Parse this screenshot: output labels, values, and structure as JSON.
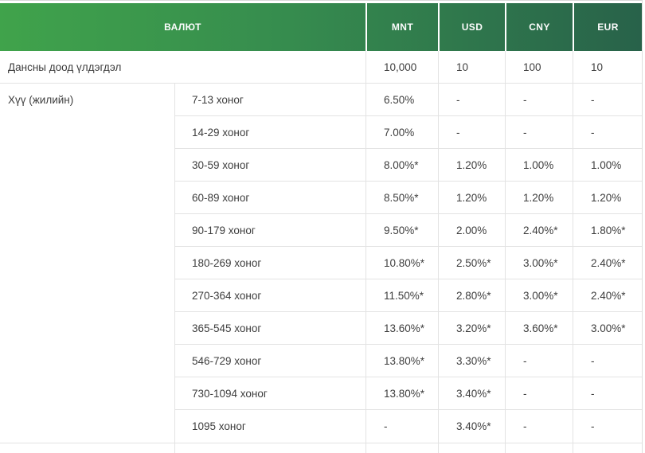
{
  "table": {
    "header": {
      "currency_label": "ВАЛЮТ",
      "columns": [
        "MNT",
        "USD",
        "CNY",
        "EUR"
      ]
    },
    "min_balance": {
      "label": "Дансны доод үлдэгдэл",
      "values": [
        "10,000",
        "10",
        "100",
        "10"
      ]
    },
    "interest": {
      "label": "Хүү (жилийн)",
      "periods": [
        {
          "label": "7-13 хоног",
          "values": [
            "6.50%",
            "-",
            "-",
            "-"
          ]
        },
        {
          "label": "14-29 хоног",
          "values": [
            "7.00%",
            "-",
            "-",
            "-"
          ]
        },
        {
          "label": "30-59 хоног",
          "values": [
            "8.00%*",
            "1.20%",
            "1.00%",
            "1.00%"
          ]
        },
        {
          "label": "60-89 хоног",
          "values": [
            "8.50%*",
            "1.20%",
            "1.20%",
            "1.20%"
          ]
        },
        {
          "label": "90-179 хоног",
          "values": [
            "9.50%*",
            "2.00%",
            "2.40%*",
            "1.80%*"
          ]
        },
        {
          "label": "180-269 хоног",
          "values": [
            "10.80%*",
            "2.50%*",
            "3.00%*",
            "2.40%*"
          ]
        },
        {
          "label": "270-364 хоног",
          "values": [
            "11.50%*",
            "2.80%*",
            "3.00%*",
            "2.40%*"
          ]
        },
        {
          "label": "365-545 хоног",
          "values": [
            "13.60%*",
            "3.20%*",
            "3.60%*",
            "3.00%*"
          ]
        },
        {
          "label": "546-729 хоног",
          "values": [
            "13.80%*",
            "3.30%*",
            "-",
            "-"
          ]
        },
        {
          "label": "730-1094 хоног",
          "values": [
            "13.80%*",
            "3.40%*",
            "-",
            "-"
          ]
        },
        {
          "label": "1095 хоног",
          "values": [
            "-",
            "3.40%*",
            "-",
            "-"
          ]
        }
      ]
    },
    "colors": {
      "header_gradient_start": "#40a34b",
      "header_gradient_end": "#28624a",
      "border": "#e3e3e3",
      "body_text": "#3d3d3d",
      "header_text": "#fcfcfc"
    }
  }
}
